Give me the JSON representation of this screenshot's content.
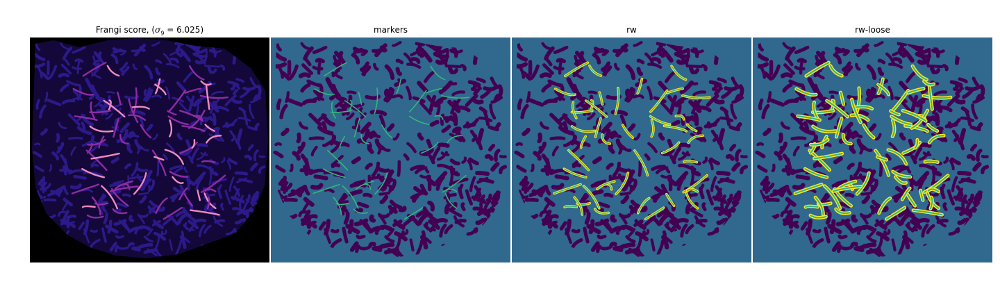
{
  "figure": {
    "panels": [
      {
        "id": "frangi",
        "title_prefix": "Frangi score, (",
        "title_math": "σ",
        "title_sub": "9",
        "title_suffix": " = 6.025)",
        "colormap": "magma",
        "background": "#000000"
      },
      {
        "id": "markers",
        "title": "markers",
        "colormap": "viridis",
        "background": "#31688e"
      },
      {
        "id": "rw",
        "title": "rw",
        "colormap": "viridis",
        "background": "#31688e"
      },
      {
        "id": "rw-loose",
        "title": "rw-loose",
        "colormap": "viridis",
        "background": "#31688e"
      }
    ],
    "colors": {
      "dark_purple": "#440154",
      "teal": "#31688e",
      "green": "#35b779",
      "yellow": "#fde725",
      "magma_low": "#2c1a8a",
      "magma_mid": "#8e2ba6",
      "magma_high": "#f08ac0"
    }
  }
}
